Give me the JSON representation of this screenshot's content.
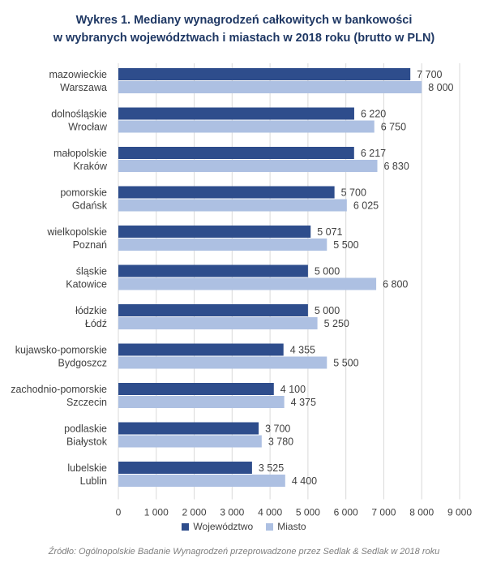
{
  "title_line1": "Wykres 1. Mediany wynagrodzeń całkowitych w bankowości",
  "title_line2": "w wybranych województwach i miastach w 2018 roku (brutto w PLN)",
  "source": "Źródło: Ogólnopolskie Badanie Wynagrodzeń przeprowadzone przez Sedlak & Sedlak w 2018 roku",
  "colors": {
    "wojewodztwo": "#2e4d8c",
    "miasto": "#adc0e2",
    "grid": "#d9d9d9",
    "text": "#404040"
  },
  "chart_data": {
    "type": "bar",
    "orientation": "horizontal",
    "title": "Wykres 1. Mediany wynagrodzeń całkowitych w bankowości w wybranych województwach i miastach w 2018 roku (brutto w PLN)",
    "xlim": [
      0,
      9000
    ],
    "x_ticks": [
      "0",
      "1 000",
      "2 000",
      "3 000",
      "4 000",
      "5 000",
      "6 000",
      "7 000",
      "8 000",
      "9 000"
    ],
    "grid": "vertical",
    "legend_position": "bottom",
    "legend": [
      "Województwo",
      "Miasto"
    ],
    "groups": [
      {
        "wojewodztwo": "mazowieckie",
        "miasto": "Warszawa",
        "values": [
          7700,
          8000
        ],
        "labels": [
          "7 700",
          "8 000"
        ]
      },
      {
        "wojewodztwo": "dolnośląskie",
        "miasto": "Wrocław",
        "values": [
          6220,
          6750
        ],
        "labels": [
          "6 220",
          "6 750"
        ]
      },
      {
        "wojewodztwo": "małopolskie",
        "miasto": "Kraków",
        "values": [
          6217,
          6830
        ],
        "labels": [
          "6 217",
          "6 830"
        ]
      },
      {
        "wojewodztwo": "pomorskie",
        "miasto": "Gdańsk",
        "values": [
          5700,
          6025
        ],
        "labels": [
          "5 700",
          "6 025"
        ]
      },
      {
        "wojewodztwo": "wielkopolskie",
        "miasto": "Poznań",
        "values": [
          5071,
          5500
        ],
        "labels": [
          "5 071",
          "5 500"
        ]
      },
      {
        "wojewodztwo": "śląskie",
        "miasto": "Katowice",
        "values": [
          5000,
          6800
        ],
        "labels": [
          "5 000",
          "6 800"
        ]
      },
      {
        "wojewodztwo": "łódzkie",
        "miasto": "Łódź",
        "values": [
          5000,
          5250
        ],
        "labels": [
          "5 000",
          "5 250"
        ]
      },
      {
        "wojewodztwo": "kujawsko-pomorskie",
        "miasto": "Bydgoszcz",
        "values": [
          4355,
          5500
        ],
        "labels": [
          "4 355",
          "5 500"
        ]
      },
      {
        "wojewodztwo": "zachodnio-pomorskie",
        "miasto": "Szczecin",
        "values": [
          4100,
          4375
        ],
        "labels": [
          "4 100",
          "4 375"
        ]
      },
      {
        "wojewodztwo": "podlaskie",
        "miasto": "Białystok",
        "values": [
          3700,
          3780
        ],
        "labels": [
          "3 700",
          "3 780"
        ]
      },
      {
        "wojewodztwo": "lubelskie",
        "miasto": "Lublin",
        "values": [
          3525,
          4400
        ],
        "labels": [
          "3 525",
          "4 400"
        ]
      }
    ]
  }
}
